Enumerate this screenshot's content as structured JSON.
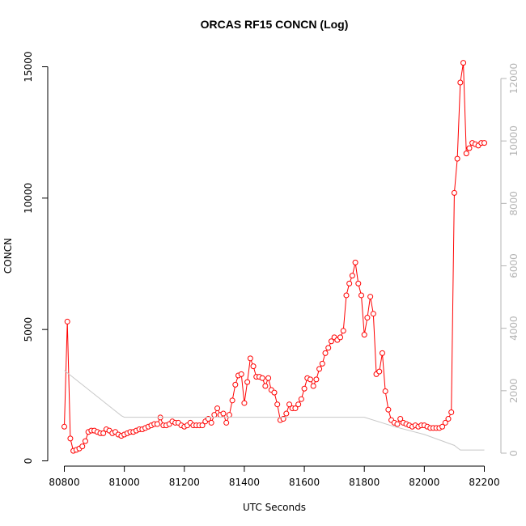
{
  "chart_data": {
    "type": "line",
    "title": "ORCAS RF15 CONCN (Log)",
    "xlabel": "UTC Seconds",
    "ylabel": "CONCN",
    "xlim": [
      80800,
      82200
    ],
    "ylim": [
      0,
      15000
    ],
    "y2lim": [
      0,
      12000
    ],
    "x_ticks": [
      80800,
      81000,
      81200,
      81400,
      81600,
      81800,
      82000,
      82200
    ],
    "y_ticks": [
      0,
      5000,
      10000,
      15000
    ],
    "y2_ticks": [
      0,
      2000,
      4000,
      6000,
      8000,
      10000,
      12000
    ],
    "grid": false,
    "series": [
      {
        "axis": "left",
        "color": "#ff0000",
        "style": "line+points",
        "x": [
          80800,
          80810,
          80820,
          80830,
          80840,
          80850,
          80860,
          80870,
          80880,
          80890,
          80900,
          80910,
          80920,
          80930,
          80940,
          80950,
          80960,
          80970,
          80980,
          80990,
          81000,
          81010,
          81020,
          81030,
          81040,
          81050,
          81060,
          81070,
          81080,
          81090,
          81100,
          81110,
          81120,
          81130,
          81140,
          81150,
          81160,
          81170,
          81180,
          81190,
          81200,
          81210,
          81220,
          81230,
          81240,
          81250,
          81260,
          81270,
          81280,
          81290,
          81300,
          81310,
          81320,
          81330,
          81340,
          81350,
          81360,
          81370,
          81380,
          81390,
          81400,
          81410,
          81420,
          81430,
          81440,
          81450,
          81460,
          81470,
          81480,
          81490,
          81500,
          81510,
          81520,
          81530,
          81540,
          81550,
          81560,
          81570,
          81580,
          81590,
          81600,
          81610,
          81620,
          81630,
          81640,
          81650,
          81660,
          81670,
          81680,
          81690,
          81700,
          81710,
          81720,
          81730,
          81740,
          81750,
          81760,
          81770,
          81780,
          81790,
          81800,
          81810,
          81820,
          81830,
          81840,
          81850,
          81860,
          81870,
          81880,
          81890,
          81900,
          81910,
          81920,
          81930,
          81940,
          81950,
          81960,
          81970,
          81980,
          81990,
          82000,
          82010,
          82020,
          82030,
          82040,
          82050,
          82060,
          82070,
          82080,
          82090,
          82100,
          82110,
          82120,
          82130,
          82140,
          82150,
          82160,
          82170,
          82180,
          82190,
          82200
        ],
        "y": [
          1300,
          5300,
          850,
          380,
          420,
          470,
          550,
          750,
          1100,
          1150,
          1150,
          1100,
          1050,
          1050,
          1200,
          1150,
          1050,
          1100,
          1000,
          950,
          1000,
          1050,
          1100,
          1100,
          1150,
          1200,
          1200,
          1250,
          1300,
          1350,
          1400,
          1400,
          1650,
          1350,
          1350,
          1400,
          1500,
          1450,
          1450,
          1350,
          1300,
          1350,
          1450,
          1350,
          1350,
          1350,
          1350,
          1500,
          1600,
          1450,
          1750,
          2000,
          1750,
          1800,
          1450,
          1750,
          2300,
          2900,
          3250,
          3300,
          2200,
          3000,
          3900,
          3600,
          3200,
          3200,
          3150,
          2850,
          3150,
          2700,
          2600,
          2150,
          1550,
          1600,
          1800,
          2150,
          2000,
          2000,
          2150,
          2350,
          2750,
          3150,
          3100,
          2850,
          3100,
          3500,
          3700,
          4100,
          4300,
          4550,
          4700,
          4600,
          4700,
          4950,
          6300,
          6750,
          7050,
          7550,
          6750,
          6300,
          4800,
          5450,
          6250,
          5600,
          3300,
          3400,
          4100,
          2650,
          1950,
          1550,
          1450,
          1400,
          1600,
          1450,
          1400,
          1350,
          1300,
          1350,
          1300,
          1350,
          1350,
          1300,
          1250,
          1250,
          1250,
          1250,
          1300,
          1450,
          1600,
          1850,
          10200,
          11500,
          14400,
          15150,
          11700,
          11900,
          12100,
          12050,
          12000,
          12100,
          12100
        ]
      },
      {
        "axis": "right",
        "color": "#c8c8c8",
        "style": "line",
        "x": [
          80800,
          80990,
          81000,
          81790,
          81800,
          81900,
          82000,
          82100,
          82120,
          82200
        ],
        "y": [
          2650,
          1200,
          1150,
          1150,
          1150,
          850,
          600,
          250,
          100,
          100
        ]
      }
    ]
  }
}
